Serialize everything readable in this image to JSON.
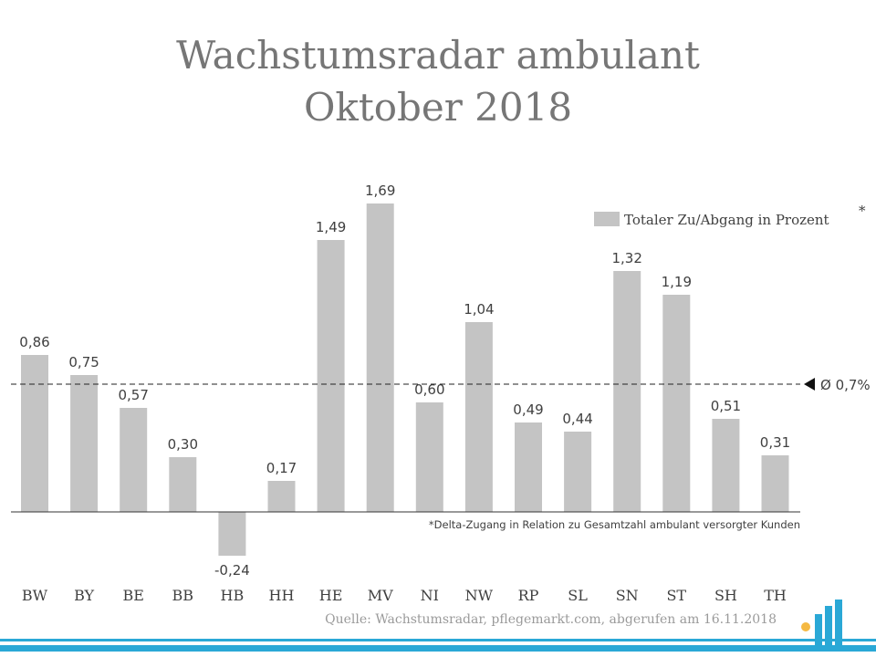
{
  "title_line1": "Wachstumsradar ambulant",
  "title_line2": "Oktober 2018",
  "legend": {
    "label": "Totaler Zu/Abgang in Prozent",
    "marker": "*"
  },
  "average_label": "Ø 0,7%",
  "footnote": "*Delta-Zugang in Relation zu Gesamtzahl ambulant versorgter Kunden",
  "source": "Quelle: Wachstumsradar, pflegemarkt.com, abgerufen am 16.11.2018",
  "colors": {
    "bar": "#c4c4c4",
    "title": "#767676",
    "text": "#404040",
    "brand_blue": "#2aa8d6",
    "brand_dot": "#f5b942"
  },
  "chart_data": {
    "type": "bar",
    "categories": [
      "BW",
      "BY",
      "BE",
      "BB",
      "HB",
      "HH",
      "HE",
      "MV",
      "NI",
      "NW",
      "RP",
      "SL",
      "SN",
      "ST",
      "SH",
      "TH"
    ],
    "values": [
      0.86,
      0.75,
      0.57,
      0.3,
      -0.24,
      0.17,
      1.49,
      1.69,
      0.6,
      1.04,
      0.49,
      0.44,
      1.32,
      1.19,
      0.51,
      0.31
    ],
    "value_labels": [
      "0,86",
      "0,75",
      "0,57",
      "0,30",
      "-0,24",
      "0,17",
      "1,49",
      "1,69",
      "0,60",
      "1,04",
      "0,49",
      "0,44",
      "1,32",
      "1,19",
      "0,51",
      "0,31"
    ],
    "average": 0.7,
    "legend_position": "top-right",
    "grid": false
  }
}
